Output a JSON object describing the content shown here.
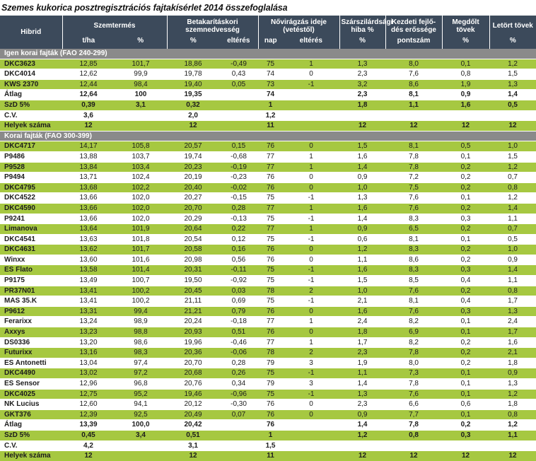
{
  "title": "Szemes kukorica posztregisztrációs fajtakísérlet 2014 összefoglalása",
  "colors": {
    "header_bg": "#3c4a5b",
    "row_green": "#a6c841",
    "section_bg": "#8a8a8a",
    "text": "#1c1c1c"
  },
  "table": {
    "header": {
      "hibrid": "Hibrid",
      "groups": [
        {
          "label": "Szemtermés",
          "subs": [
            "t/ha",
            "%"
          ]
        },
        {
          "label": "Betakarításkori szemnedvesség",
          "subs": [
            "%",
            "eltérés"
          ]
        },
        {
          "label": "Nővirágzás ideje (vetéstől)",
          "subs": [
            "nap",
            "eltérés"
          ]
        },
        {
          "label": "Szárszilárdsági hiba %",
          "subs": [
            "%"
          ]
        },
        {
          "label": "Kezdeti fejlő-dés erőssége",
          "subs": [
            "pontszám"
          ]
        },
        {
          "label": "Megdőlt tövek",
          "subs": [
            "%"
          ]
        },
        {
          "label": "Letört tövek",
          "subs": [
            "%"
          ]
        }
      ]
    },
    "sections": [
      {
        "label": "Igen korai fajták (FAO 240-299)",
        "rows": [
          {
            "name": "DKC3623",
            "bold": false,
            "values": [
              "12,85",
              "101,7",
              "18,86",
              "-0,49",
              "75",
              "1",
              "1,3",
              "8,0",
              "0,1",
              "1,2"
            ]
          },
          {
            "name": "DKC4014",
            "bold": false,
            "values": [
              "12,62",
              "99,9",
              "19,78",
              "0,43",
              "74",
              "0",
              "2,3",
              "7,6",
              "0,8",
              "1,5"
            ]
          },
          {
            "name": "KWS 2370",
            "bold": false,
            "values": [
              "12,44",
              "98,4",
              "19,40",
              "0,05",
              "73",
              "-1",
              "3,2",
              "8,6",
              "1,9",
              "1,3"
            ]
          },
          {
            "name": "Átlag",
            "bold": true,
            "values": [
              "12,64",
              "100",
              "19,35",
              "",
              "74",
              "",
              "2,3",
              "8,1",
              "0,9",
              "1,4"
            ]
          },
          {
            "name": "SzD 5%",
            "bold": true,
            "values": [
              "0,39",
              "3,1",
              "0,32",
              "",
              "1",
              "",
              "1,8",
              "1,1",
              "1,6",
              "0,5"
            ]
          },
          {
            "name": "C.V.",
            "bold": true,
            "values": [
              "3,6",
              "",
              "2,0",
              "",
              "1,2",
              "",
              "",
              "",
              "",
              ""
            ]
          },
          {
            "name": "Helyek száma",
            "bold": true,
            "values": [
              "12",
              "",
              "12",
              "",
              "11",
              "",
              "12",
              "12",
              "12",
              "12"
            ]
          }
        ]
      },
      {
        "label": "Korai fajták (FAO 300-399)",
        "rows": [
          {
            "name": "DKC4717",
            "bold": false,
            "values": [
              "14,17",
              "105,8",
              "20,57",
              "0,15",
              "76",
              "0",
              "1,5",
              "8,1",
              "0,5",
              "1,0"
            ]
          },
          {
            "name": "P9486",
            "bold": false,
            "values": [
              "13,88",
              "103,7",
              "19,74",
              "-0,68",
              "77",
              "1",
              "1,6",
              "7,8",
              "0,1",
              "1,5"
            ]
          },
          {
            "name": "P9528",
            "bold": false,
            "values": [
              "13,84",
              "103,4",
              "20,23",
              "-0,19",
              "77",
              "1",
              "1,4",
              "7,8",
              "0,2",
              "1,2"
            ]
          },
          {
            "name": "P9494",
            "bold": false,
            "values": [
              "13,71",
              "102,4",
              "20,19",
              "-0,23",
              "76",
              "0",
              "0,9",
              "7,2",
              "0,2",
              "0,7"
            ]
          },
          {
            "name": "DKC4795",
            "bold": false,
            "values": [
              "13,68",
              "102,2",
              "20,40",
              "-0,02",
              "76",
              "0",
              "1,0",
              "7,5",
              "0,2",
              "0,8"
            ]
          },
          {
            "name": "DKC4522",
            "bold": false,
            "values": [
              "13,66",
              "102,0",
              "20,27",
              "-0,15",
              "75",
              "-1",
              "1,3",
              "7,6",
              "0,1",
              "1,2"
            ]
          },
          {
            "name": "DKC4590",
            "bold": false,
            "values": [
              "13,66",
              "102,0",
              "20,70",
              "0,28",
              "77",
              "1",
              "1,6",
              "7,6",
              "0,2",
              "1,4"
            ]
          },
          {
            "name": "P9241",
            "bold": false,
            "values": [
              "13,66",
              "102,0",
              "20,29",
              "-0,13",
              "75",
              "-1",
              "1,4",
              "8,3",
              "0,3",
              "1,1"
            ]
          },
          {
            "name": "Limanova",
            "bold": false,
            "values": [
              "13,64",
              "101,9",
              "20,64",
              "0,22",
              "77",
              "1",
              "0,9",
              "6,5",
              "0,2",
              "0,7"
            ]
          },
          {
            "name": "DKC4541",
            "bold": false,
            "values": [
              "13,63",
              "101,8",
              "20,54",
              "0,12",
              "75",
              "-1",
              "0,6",
              "8,1",
              "0,1",
              "0,5"
            ]
          },
          {
            "name": "DKC4631",
            "bold": false,
            "values": [
              "13,62",
              "101,7",
              "20,58",
              "0,16",
              "76",
              "0",
              "1,2",
              "8,3",
              "0,2",
              "1,0"
            ]
          },
          {
            "name": "Winxx",
            "bold": false,
            "values": [
              "13,60",
              "101,6",
              "20,98",
              "0,56",
              "76",
              "0",
              "1,1",
              "8,6",
              "0,2",
              "0,9"
            ]
          },
          {
            "name": "ES Flato",
            "bold": false,
            "values": [
              "13,58",
              "101,4",
              "20,31",
              "-0,11",
              "75",
              "-1",
              "1,6",
              "8,3",
              "0,3",
              "1,4"
            ]
          },
          {
            "name": "P9175",
            "bold": false,
            "values": [
              "13,49",
              "100,7",
              "19,50",
              "-0,92",
              "75",
              "-1",
              "1,5",
              "8,5",
              "0,4",
              "1,1"
            ]
          },
          {
            "name": "PR37N01",
            "bold": false,
            "values": [
              "13,41",
              "100,2",
              "20,45",
              "0,03",
              "78",
              "2",
              "1,0",
              "7,6",
              "0,2",
              "0,8"
            ]
          },
          {
            "name": "MAS 35.K",
            "bold": false,
            "values": [
              "13,41",
              "100,2",
              "21,11",
              "0,69",
              "75",
              "-1",
              "2,1",
              "8,1",
              "0,4",
              "1,7"
            ]
          },
          {
            "name": "P9612",
            "bold": false,
            "values": [
              "13,31",
              "99,4",
              "21,21",
              "0,79",
              "76",
              "0",
              "1,6",
              "7,6",
              "0,3",
              "1,3"
            ]
          },
          {
            "name": "Ferarixx",
            "bold": false,
            "values": [
              "13,24",
              "98,9",
              "20,24",
              "-0,18",
              "77",
              "1",
              "2,4",
              "8,2",
              "0,1",
              "2,4"
            ]
          },
          {
            "name": "Axxys",
            "bold": false,
            "values": [
              "13,23",
              "98,8",
              "20,93",
              "0,51",
              "76",
              "0",
              "1,8",
              "6,9",
              "0,1",
              "1,7"
            ]
          },
          {
            "name": "DS0336",
            "bold": false,
            "values": [
              "13,20",
              "98,6",
              "19,96",
              "-0,46",
              "77",
              "1",
              "1,7",
              "8,2",
              "0,2",
              "1,6"
            ]
          },
          {
            "name": "Futurixx",
            "bold": false,
            "values": [
              "13,16",
              "98,3",
              "20,36",
              "-0,06",
              "78",
              "2",
              "2,3",
              "7,8",
              "0,2",
              "2,1"
            ]
          },
          {
            "name": "ES Antonetti",
            "bold": false,
            "values": [
              "13,04",
              "97,4",
              "20,70",
              "0,28",
              "79",
              "3",
              "1,9",
              "8,0",
              "0,2",
              "1,8"
            ]
          },
          {
            "name": "DKC4490",
            "bold": false,
            "values": [
              "13,02",
              "97,2",
              "20,68",
              "0,26",
              "75",
              "-1",
              "1,1",
              "7,3",
              "0,1",
              "0,9"
            ]
          },
          {
            "name": "ES Sensor",
            "bold": false,
            "values": [
              "12,96",
              "96,8",
              "20,76",
              "0,34",
              "79",
              "3",
              "1,4",
              "7,8",
              "0,1",
              "1,3"
            ]
          },
          {
            "name": "DKC4025",
            "bold": false,
            "values": [
              "12,75",
              "95,2",
              "19,46",
              "-0,96",
              "75",
              "-1",
              "1,3",
              "7,6",
              "0,1",
              "1,2"
            ]
          },
          {
            "name": "NK Lucius",
            "bold": false,
            "values": [
              "12,60",
              "94,1",
              "20,12",
              "-0,30",
              "76",
              "0",
              "2,3",
              "6,6",
              "0,6",
              "1,8"
            ]
          },
          {
            "name": "GKT376",
            "bold": false,
            "values": [
              "12,39",
              "92,5",
              "20,49",
              "0,07",
              "76",
              "0",
              "0,9",
              "7,7",
              "0,1",
              "0,8"
            ]
          },
          {
            "name": "Átlag",
            "bold": true,
            "values": [
              "13,39",
              "100,0",
              "20,42",
              "",
              "76",
              "",
              "1,4",
              "7,8",
              "0,2",
              "1,2"
            ]
          },
          {
            "name": "SzD 5%",
            "bold": true,
            "values": [
              "0,45",
              "3,4",
              "0,51",
              "",
              "1",
              "",
              "1,2",
              "0,8",
              "0,3",
              "1,1"
            ]
          },
          {
            "name": "C.V.",
            "bold": true,
            "values": [
              "4,2",
              "",
              "3,1",
              "",
              "1,5",
              "",
              "",
              "",
              "",
              ""
            ]
          },
          {
            "name": "Helyek száma",
            "bold": true,
            "values": [
              "12",
              "",
              "12",
              "",
              "11",
              "",
              "12",
              "12",
              "12",
              "12"
            ]
          }
        ]
      }
    ]
  }
}
